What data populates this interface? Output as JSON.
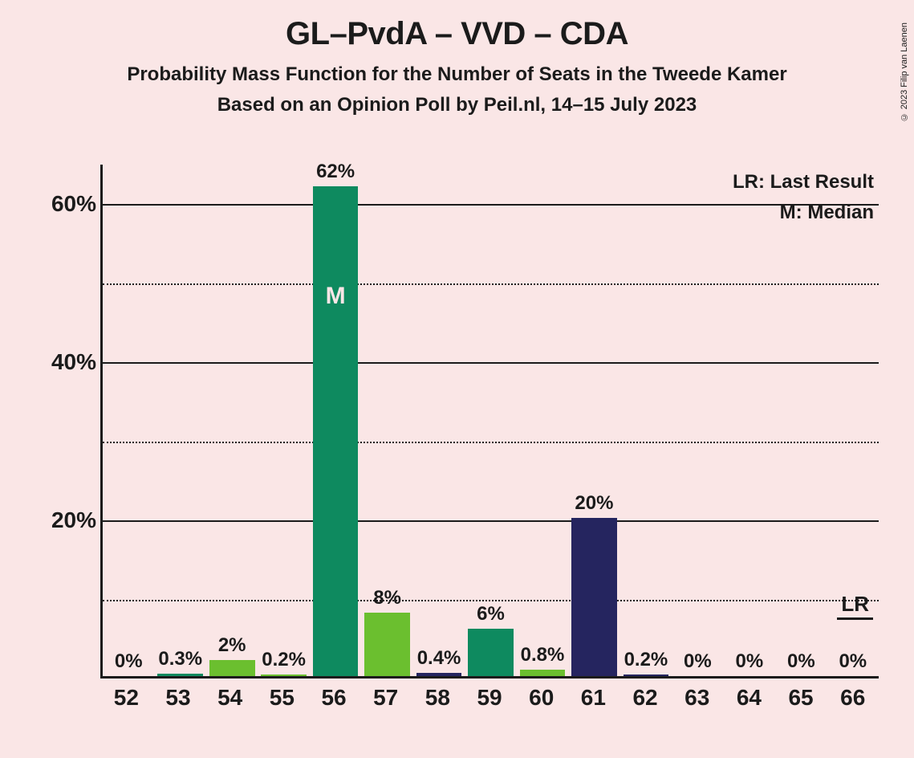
{
  "titles": {
    "main": "GL–PvdA – VVD – CDA",
    "sub1": "Probability Mass Function for the Number of Seats in the Tweede Kamer",
    "sub2": "Based on an Opinion Poll by Peil.nl, 14–15 July 2023"
  },
  "copyright": "© 2023 Filip van Laenen",
  "legend": {
    "lr": "LR: Last Result",
    "m": "M: Median"
  },
  "chart": {
    "type": "bar",
    "background_color": "#fae6e6",
    "axis_color": "#1b1b1b",
    "text_color": "#1b1b1b",
    "ylim_max": 65,
    "major_ticks": [
      20,
      40,
      60
    ],
    "minor_ticks": [
      10,
      30,
      50
    ],
    "ytick_labels": [
      "20%",
      "40%",
      "60%"
    ],
    "categories": [
      "52",
      "53",
      "54",
      "55",
      "56",
      "57",
      "58",
      "59",
      "60",
      "61",
      "62",
      "63",
      "64",
      "65",
      "66"
    ],
    "values": [
      0,
      0.3,
      2,
      0.2,
      62,
      8,
      0.4,
      6,
      0.8,
      20,
      0.2,
      0,
      0,
      0,
      0
    ],
    "value_labels": [
      "0%",
      "0.3%",
      "2%",
      "0.2%",
      "62%",
      "8%",
      "0.4%",
      "6%",
      "0.8%",
      "20%",
      "0.2%",
      "0%",
      "0%",
      "0%",
      "0%"
    ],
    "bar_colors": [
      "#0e8a5f",
      "#0e8a5f",
      "#6bbf2f",
      "#6bbf2f",
      "#0e8a5f",
      "#6bbf2f",
      "#25255f",
      "#0e8a5f",
      "#6bbf2f",
      "#25255f",
      "#25255f",
      "#25255f",
      "#25255f",
      "#25255f",
      "#25255f"
    ],
    "median_index": 4,
    "median_label": "M",
    "lr_index": 14,
    "lr_label": "LR",
    "bar_width": 0.88,
    "label_fontsize": 24,
    "tick_fontsize": 28
  }
}
